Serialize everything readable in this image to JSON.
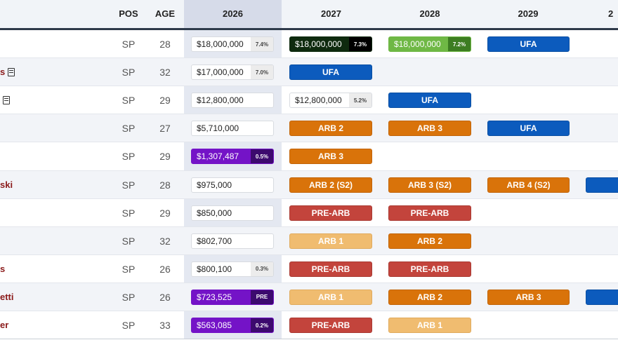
{
  "headers": {
    "pos": "POS",
    "age": "AGE",
    "y2026": "2026",
    "y2027": "2027",
    "y2028": "2028",
    "y2029": "2029",
    "y2030": "2"
  },
  "rows": [
    {
      "name": "",
      "doc": false,
      "pos": "SP",
      "age": "28",
      "cells": [
        {
          "kind": "white",
          "amount": "$18,000,000",
          "pct": "7.4%"
        },
        {
          "kind": "green",
          "amount": "$18,000,000",
          "pct": "7.3%"
        },
        {
          "kind": "lgreen",
          "amount": "$18,000,000",
          "pct": "7.2%"
        },
        {
          "kind": "ufa",
          "label": "UFA"
        },
        null
      ]
    },
    {
      "name": "s",
      "doc": true,
      "pos": "SP",
      "age": "32",
      "cells": [
        {
          "kind": "white",
          "amount": "$17,000,000",
          "pct": "7.0%"
        },
        {
          "kind": "ufa",
          "label": "UFA"
        },
        null,
        null,
        null
      ]
    },
    {
      "name": "",
      "doc": true,
      "pos": "SP",
      "age": "29",
      "cells": [
        {
          "kind": "white",
          "amount": "$12,800,000",
          "pct": ""
        },
        {
          "kind": "white",
          "amount": "$12,800,000",
          "pct": "5.2%"
        },
        {
          "kind": "ufa",
          "label": "UFA"
        },
        null,
        null
      ]
    },
    {
      "name": "",
      "doc": false,
      "pos": "SP",
      "age": "27",
      "cells": [
        {
          "kind": "white",
          "amount": "$5,710,000",
          "pct": ""
        },
        {
          "kind": "arb",
          "label": "ARB 2"
        },
        {
          "kind": "arb",
          "label": "ARB 3"
        },
        {
          "kind": "ufa",
          "label": "UFA"
        },
        null
      ]
    },
    {
      "name": "",
      "doc": false,
      "pos": "SP",
      "age": "29",
      "cells": [
        {
          "kind": "purple",
          "amount": "$1,307,487",
          "pct": "0.5%"
        },
        {
          "kind": "arb",
          "label": "ARB 3"
        },
        null,
        null,
        null
      ]
    },
    {
      "name": "ski",
      "doc": false,
      "pos": "SP",
      "age": "28",
      "cells": [
        {
          "kind": "white",
          "amount": "$975,000",
          "pct": ""
        },
        {
          "kind": "arb",
          "label": "ARB 2 (S2)"
        },
        {
          "kind": "arb",
          "label": "ARB 3 (S2)"
        },
        {
          "kind": "arb",
          "label": "ARB 4 (S2)"
        },
        {
          "kind": "ufa",
          "label": ""
        }
      ]
    },
    {
      "name": "",
      "doc": false,
      "pos": "SP",
      "age": "29",
      "cells": [
        {
          "kind": "white",
          "amount": "$850,000",
          "pct": ""
        },
        {
          "kind": "prearb",
          "label": "PRE-ARB"
        },
        {
          "kind": "prearb",
          "label": "PRE-ARB"
        },
        null,
        null
      ]
    },
    {
      "name": "",
      "doc": false,
      "pos": "SP",
      "age": "32",
      "cells": [
        {
          "kind": "white",
          "amount": "$802,700",
          "pct": ""
        },
        {
          "kind": "arblight",
          "label": "ARB 1"
        },
        {
          "kind": "arb",
          "label": "ARB 2"
        },
        null,
        null
      ]
    },
    {
      "name": "s",
      "doc": false,
      "pos": "SP",
      "age": "26",
      "cells": [
        {
          "kind": "white",
          "amount": "$800,100",
          "pct": "0.3%"
        },
        {
          "kind": "prearb",
          "label": "PRE-ARB"
        },
        {
          "kind": "prearb",
          "label": "PRE-ARB"
        },
        null,
        null
      ]
    },
    {
      "name": "etti",
      "doc": false,
      "pos": "SP",
      "age": "26",
      "cells": [
        {
          "kind": "purple",
          "amount": "$723,525",
          "pct": "PRE"
        },
        {
          "kind": "arblight",
          "label": "ARB 1"
        },
        {
          "kind": "arb",
          "label": "ARB 2"
        },
        {
          "kind": "arb",
          "label": "ARB 3"
        },
        {
          "kind": "ufa",
          "label": ""
        }
      ]
    },
    {
      "name": "er",
      "doc": false,
      "pos": "SP",
      "age": "33",
      "cells": [
        {
          "kind": "purple",
          "amount": "$563,085",
          "pct": "0.2%"
        },
        {
          "kind": "prearb",
          "label": "PRE-ARB"
        },
        {
          "kind": "arblight",
          "label": "ARB 1"
        },
        null,
        null
      ]
    }
  ]
}
